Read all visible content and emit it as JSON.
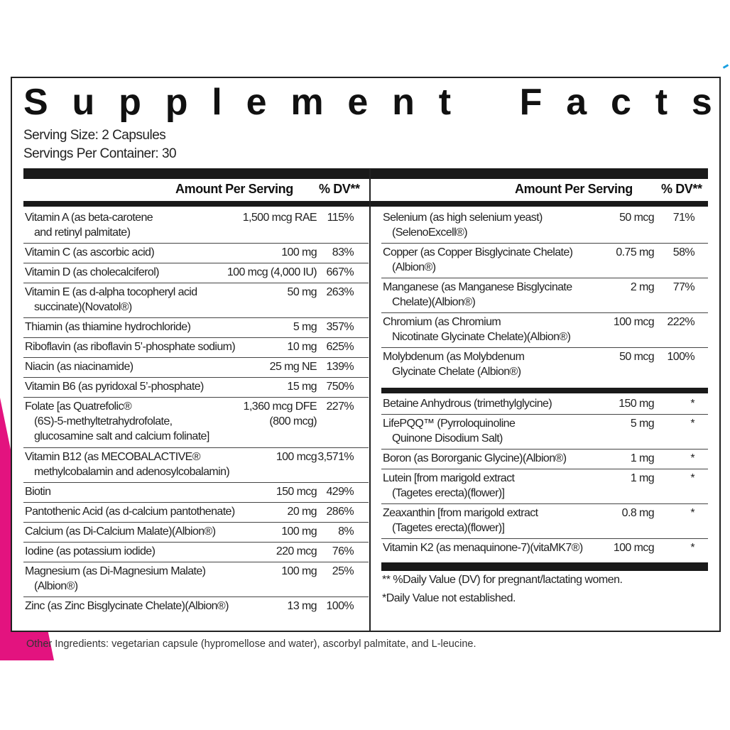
{
  "colors": {
    "accent_pink": "#e3137f",
    "text": "#222222",
    "bar": "#1a1a1a"
  },
  "title": "Supplement Facts",
  "serving_size": "Serving Size: 2 Capsules",
  "servings_per_container": "Servings Per Container: 30",
  "header": {
    "amount": "Amount Per Serving",
    "dv": "% DV**"
  },
  "left_rows": [
    {
      "name": "Vitamin A (as beta-carotene",
      "name2": "and retinyl palmitate)",
      "amount": "1,500 mcg RAE",
      "dv": "115%"
    },
    {
      "name": "Vitamin C (as ascorbic acid)",
      "amount": "100 mg",
      "dv": "83%"
    },
    {
      "name": "Vitamin D (as cholecalciferol)",
      "amount": "100 mcg (4,000 IU)",
      "dv": "667%"
    },
    {
      "name": "Vitamin E (as d-alpha tocopheryl acid",
      "name2": "succinate)(Novatol®)",
      "amount": "50 mg",
      "dv": "263%"
    },
    {
      "name": "Thiamin (as thiamine hydrochloride)",
      "amount": "5 mg",
      "dv": "357%"
    },
    {
      "name": "Riboflavin (as riboflavin 5’-phosphate sodium)",
      "amount": "10 mg",
      "dv": "625%"
    },
    {
      "name": "Niacin (as niacinamide)",
      "amount": "25 mg NE",
      "dv": "139%"
    },
    {
      "name": "Vitamin B6 (as pyridoxal 5’-phosphate)",
      "amount": "15 mg",
      "dv": "750%"
    },
    {
      "name": "Folate [as Quatrefolic®",
      "name2": "(6S)-5-methyltetrahydrofolate,",
      "name3": "glucosamine salt and calcium folinate]",
      "amount": "1,360 mcg DFE",
      "amount2": "(800 mcg)",
      "dv": "227%"
    },
    {
      "name": "Vitamin B12 (as MECOBALACTIVE®",
      "name2": "methylcobalamin and adenosylcobalamin)",
      "amount": "100 mcg",
      "dv": "3,571%"
    },
    {
      "name": "Biotin",
      "amount": "150 mcg",
      "dv": "429%"
    },
    {
      "name": "Pantothenic Acid (as d-calcium pantothenate)",
      "amount": "20 mg",
      "dv": "286%"
    },
    {
      "name": "Calcium (as Di-Calcium Malate)(Albion®)",
      "amount": "100 mg",
      "dv": "8%"
    },
    {
      "name": "Iodine (as potassium iodide)",
      "amount": "220 mcg",
      "dv": "76%"
    },
    {
      "name": "Magnesium (as Di-Magnesium Malate)",
      "name2": "(Albion®)",
      "amount": "100 mg",
      "dv": "25%"
    },
    {
      "name": "Zinc (as Zinc Bisglycinate Chelate)(Albion®)",
      "amount": "13 mg",
      "dv": "100%"
    }
  ],
  "right_rows_a": [
    {
      "name": "Selenium (as high selenium yeast)",
      "name2": "(SelenoExcell®)",
      "amount": "50 mcg",
      "dv": "71%"
    },
    {
      "name": "Copper (as Copper Bisglycinate Chelate)",
      "name2": "(Albion®)",
      "amount": "0.75 mg",
      "dv": "58%"
    },
    {
      "name": "Manganese (as Manganese Bisglycinate",
      "name2": "Chelate)(Albion®)",
      "amount": "2 mg",
      "dv": "77%"
    },
    {
      "name": "Chromium (as Chromium",
      "name2": "Nicotinate Glycinate Chelate)(Albion®)",
      "amount": "100 mcg",
      "dv": "222%"
    },
    {
      "name": "Molybdenum (as Molybdenum",
      "name2": "Glycinate Chelate (Albion®)",
      "amount": "50 mcg",
      "dv": "100%"
    }
  ],
  "right_rows_b": [
    {
      "name": "Betaine Anhydrous (trimethylglycine)",
      "amount": "150 mg",
      "dv": "*"
    },
    {
      "name": "LifePQQ™ (Pyrroloquinoline",
      "name2": "Quinone Disodium Salt)",
      "amount": "5 mg",
      "dv": "*"
    },
    {
      "name": "Boron (as Bororganic Glycine)(Albion®)",
      "amount": "1 mg",
      "dv": "*"
    },
    {
      "name": "Lutein [from marigold extract",
      "name2": "(Tagetes erecta)(flower)]",
      "amount": "1 mg",
      "dv": "*"
    },
    {
      "name": "Zeaxanthin [from marigold extract",
      "name2": "(Tagetes erecta)(flower)]",
      "amount": "0.8 mg",
      "dv": "*"
    },
    {
      "name": "Vitamin K2 (as menaquinone-7)(vitaMK7®)",
      "amount": "100 mcg",
      "dv": "*"
    }
  ],
  "footnotes": [
    "** %Daily Value (DV) for pregnant/lactating women.",
    "*Daily Value not established."
  ],
  "other_ingredients": "Other Ingredients: vegetarian capsule (hypromellose and water), ascorbyl palmitate, and L-leucine."
}
